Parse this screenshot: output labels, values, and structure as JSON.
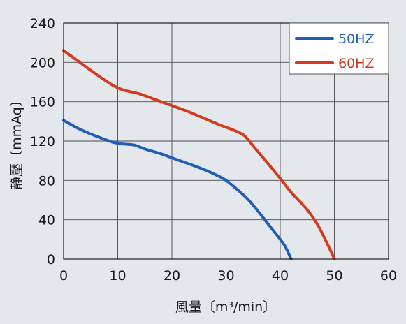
{
  "chart_data": {
    "type": "line",
    "xlabel": "風量〔m³/min〕",
    "ylabel": "静壓〔mmAq〕",
    "xlim": [
      0,
      60
    ],
    "ylim": [
      0,
      240
    ],
    "x_ticks": [
      "0",
      "10",
      "20",
      "30",
      "40",
      "50",
      "60"
    ],
    "y_ticks": [
      "0",
      "40",
      "80",
      "120",
      "160",
      "200",
      "240"
    ],
    "grid": true,
    "legend_position": "top-right",
    "series": [
      {
        "name": "50HZ",
        "color": "#1f5fb8",
        "points": [
          [
            0,
            141
          ],
          [
            3,
            132
          ],
          [
            6,
            125
          ],
          [
            9,
            119
          ],
          [
            11,
            117
          ],
          [
            13,
            116
          ],
          [
            15,
            112
          ],
          [
            18,
            107
          ],
          [
            21,
            101
          ],
          [
            25,
            93
          ],
          [
            28,
            86
          ],
          [
            30,
            80
          ],
          [
            32,
            71
          ],
          [
            34,
            61
          ],
          [
            36,
            48
          ],
          [
            38,
            34
          ],
          [
            40,
            20
          ],
          [
            41,
            12
          ],
          [
            42,
            0
          ]
        ]
      },
      {
        "name": "60HZ",
        "color": "#d63a1e",
        "points": [
          [
            0,
            212
          ],
          [
            3,
            200
          ],
          [
            6,
            188
          ],
          [
            9,
            177
          ],
          [
            11,
            172
          ],
          [
            14,
            168
          ],
          [
            17,
            162
          ],
          [
            20,
            156
          ],
          [
            23,
            150
          ],
          [
            26,
            143
          ],
          [
            29,
            136
          ],
          [
            31,
            132
          ],
          [
            33,
            127
          ],
          [
            34,
            122
          ],
          [
            35,
            115
          ],
          [
            37,
            102
          ],
          [
            40,
            82
          ],
          [
            42,
            68
          ],
          [
            45,
            50
          ],
          [
            47,
            34
          ],
          [
            49,
            12
          ],
          [
            50,
            0
          ]
        ]
      }
    ]
  }
}
